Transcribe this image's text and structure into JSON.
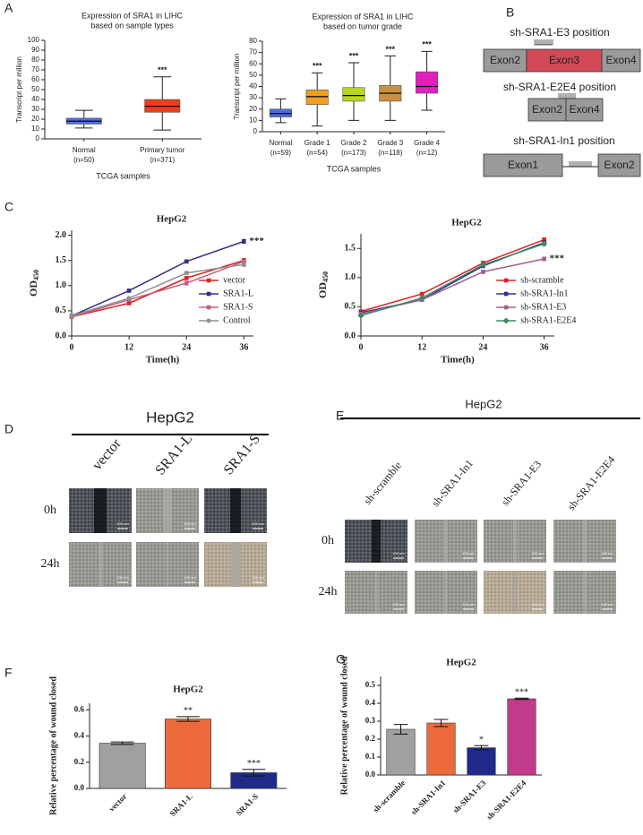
{
  "panel_labels": [
    "A",
    "B",
    "C",
    "D",
    "E",
    "F",
    "G"
  ],
  "chart_data": [
    {
      "type": "box",
      "title": "Expression of SRA1 in LIHC",
      "subtitle": "based on sample types",
      "ylabel": "Transcript per million",
      "xlabel": "TCGA samples",
      "categories": [
        "Normal",
        "Primary tumor"
      ],
      "category_counts": [
        "(n=50)",
        "(n=371)"
      ],
      "colors": [
        "#4a6ee0",
        "#e8401c"
      ],
      "min": [
        11,
        9
      ],
      "q1": [
        15,
        27
      ],
      "median": [
        18,
        33
      ],
      "q3": [
        21,
        40
      ],
      "max": [
        29,
        63
      ],
      "ylim": [
        0,
        100
      ],
      "yticks": [
        0,
        10,
        20,
        30,
        40,
        50,
        60,
        70,
        80,
        90,
        100
      ],
      "annotations": [
        {
          "category": "Primary tumor",
          "text": "***"
        }
      ]
    },
    {
      "type": "box",
      "title": "Expression of SRA1 in LIHC",
      "subtitle": "based on tumor grade",
      "ylabel": "Transcript per million",
      "xlabel": "TCGA samples",
      "categories": [
        "Normal",
        "Grade 1",
        "Grade 2",
        "Grade 3",
        "Grade 4"
      ],
      "category_counts": [
        "(n=59)",
        "(n=54)",
        "(n=173)",
        "(n=118)",
        "(n=12)"
      ],
      "colors": [
        "#4a6ee0",
        "#f0a020",
        "#b8d820",
        "#c89040",
        "#e020c0"
      ],
      "min": [
        8,
        5,
        10,
        10,
        19
      ],
      "q1": [
        13,
        24,
        27,
        27,
        34
      ],
      "median": [
        16,
        31,
        32,
        34,
        40
      ],
      "q3": [
        20,
        37,
        39,
        41,
        53
      ],
      "max": [
        29,
        52,
        61,
        67,
        71
      ],
      "ylim": [
        0,
        80
      ],
      "yticks": [
        0,
        10,
        20,
        30,
        40,
        50,
        60,
        70,
        80
      ],
      "annotations": [
        {
          "category": "Grade 1",
          "text": "***"
        },
        {
          "category": "Grade 2",
          "text": "***"
        },
        {
          "category": "Grade 3",
          "text": "***"
        },
        {
          "category": "Grade 4",
          "text": "***"
        }
      ]
    },
    {
      "type": "line",
      "title": "HepG2",
      "ylabel": "OD",
      "ylabel_subscript": "450",
      "xlabel": "Time(h)",
      "x": [
        0,
        12,
        24,
        36
      ],
      "xlim": [
        0,
        38
      ],
      "xticks": [
        0,
        12,
        24,
        36
      ],
      "ylim": [
        0,
        2.1
      ],
      "yticks": [
        {
          "value": 0,
          "label": "0.0"
        },
        0.5,
        {
          "value": 1,
          "label": "1.0"
        },
        1.5,
        {
          "value": 2,
          "label": "2.0"
        }
      ],
      "legend": "lower right",
      "series": [
        {
          "name": "vector",
          "color": "#e02020",
          "marker": "square",
          "values": [
            0.38,
            0.65,
            1.15,
            1.5
          ],
          "errors": [
            0.02,
            0.02,
            0.03,
            0.04
          ]
        },
        {
          "name": "SRA1-L",
          "color": "#303090",
          "marker": "square",
          "values": [
            0.4,
            0.9,
            1.48,
            1.88
          ],
          "errors": [
            0.02,
            0.02,
            0.03,
            0.04
          ]
        },
        {
          "name": "SRA1-S",
          "color": "#c06080",
          "marker": "square",
          "values": [
            0.38,
            0.72,
            1.05,
            1.48
          ],
          "errors": [
            0.02,
            0.02,
            0.04,
            0.03
          ]
        },
        {
          "name": "Control",
          "color": "#909090",
          "marker": "circle",
          "values": [
            0.4,
            0.75,
            1.25,
            1.42
          ],
          "errors": [
            0.02,
            0.02,
            0.03,
            0.04
          ]
        }
      ],
      "annotations": [
        {
          "series": "SRA1-L",
          "text": "***"
        }
      ]
    },
    {
      "type": "line",
      "title": "HepG2",
      "ylabel": "OD",
      "ylabel_subscript": "450",
      "xlabel": "Time(h)",
      "x": [
        0,
        12,
        24,
        36
      ],
      "xlim": [
        0,
        38
      ],
      "xticks": [
        0,
        12,
        24,
        36
      ],
      "ylim": [
        0,
        1.75
      ],
      "yticks": [
        {
          "value": 0,
          "label": "0.0"
        },
        0.5,
        {
          "value": 1,
          "label": "1.0"
        },
        1.5
      ],
      "legend": "lower right",
      "series": [
        {
          "name": "sh-scramble",
          "color": "#e02020",
          "marker": "square",
          "values": [
            0.42,
            0.72,
            1.25,
            1.65
          ],
          "errors": [
            0.02,
            0.02,
            0.03,
            0.03
          ]
        },
        {
          "name": "sh-SRA1-In1",
          "color": "#303090",
          "marker": "square",
          "values": [
            0.4,
            0.62,
            1.2,
            1.6
          ],
          "errors": [
            0.02,
            0.02,
            0.03,
            0.03
          ]
        },
        {
          "name": "sh-SRA1-E3",
          "color": "#a06090",
          "marker": "square",
          "values": [
            0.38,
            0.62,
            1.1,
            1.32
          ],
          "errors": [
            0.02,
            0.02,
            0.03,
            0.03
          ]
        },
        {
          "name": "sh-SRA1-E2E4",
          "color": "#3a8a60",
          "marker": "diamond",
          "values": [
            0.35,
            0.65,
            1.22,
            1.58
          ],
          "errors": [
            0.02,
            0.02,
            0.03,
            0.03
          ]
        }
      ],
      "annotations": [
        {
          "series": "sh-SRA1-E3",
          "text": "***"
        }
      ]
    },
    {
      "type": "bar",
      "title": "HepG2",
      "ylabel": "Relative percentage of wound closed",
      "categories": [
        "vector",
        "SRA1-L",
        "SRA1-S"
      ],
      "values": [
        0.345,
        0.53,
        0.12
      ],
      "errors": [
        0.01,
        0.018,
        0.025
      ],
      "colors": [
        "#a0a0a0",
        "#ec6a3c",
        "#1f2a8a"
      ],
      "ylim": [
        0,
        0.65
      ],
      "yticks": [
        {
          "value": 0,
          "label": "0.0"
        },
        0.2,
        0.4,
        0.6
      ],
      "annotations": [
        {
          "category": "SRA1-L",
          "text": "**"
        },
        {
          "category": "SRA1-S",
          "text": "***"
        }
      ]
    },
    {
      "type": "bar",
      "title": "HepG2",
      "ylabel": "Relative percentage of wound closed",
      "categories": [
        "sh-scramble",
        "sh-SRA1-In1",
        "sh-SRA1-E3",
        "sh-SRA1-E2E4"
      ],
      "values": [
        0.255,
        0.29,
        0.152,
        0.425
      ],
      "errors": [
        0.027,
        0.02,
        0.012,
        0.004
      ],
      "colors": [
        "#a0a0a0",
        "#ec6a3c",
        "#1f2a8a",
        "#c23a8a"
      ],
      "ylim": [
        0,
        0.55
      ],
      "yticks": [
        {
          "value": 0,
          "label": "0.0"
        },
        0.1,
        0.2,
        0.3,
        0.4,
        0.5
      ],
      "annotations": [
        {
          "category": "sh-SRA1-E3",
          "text": "*"
        },
        {
          "category": "sh-SRA1-E2E4",
          "text": "***"
        }
      ]
    }
  ],
  "diagram": {
    "constructs": [
      {
        "label": "sh-SRA1-E3 position",
        "exons": [
          "Exon2",
          "Exon3",
          "Exon4"
        ]
      },
      {
        "label": "sh-SRA1-E2E4 position",
        "exons": [
          "Exon2",
          "Exon4"
        ]
      },
      {
        "label": "sh-SRA1-In1 position",
        "exons": [
          "Exon1",
          "Exon2"
        ]
      }
    ]
  },
  "wound_panels": [
    {
      "title": "HepG2",
      "columns": [
        "vector",
        "SRA1-L",
        "SRA1-S"
      ],
      "rows": [
        "0h",
        "24h"
      ],
      "scale_label": "100 um"
    },
    {
      "title": "HepG2",
      "columns": [
        "sh-scramble",
        "sh-SRA1-In1",
        "sh-SRA1-E3",
        "sh-SRA1-E2E4"
      ],
      "rows": [
        "0h",
        "24h"
      ],
      "scale_label": "100 um"
    }
  ]
}
